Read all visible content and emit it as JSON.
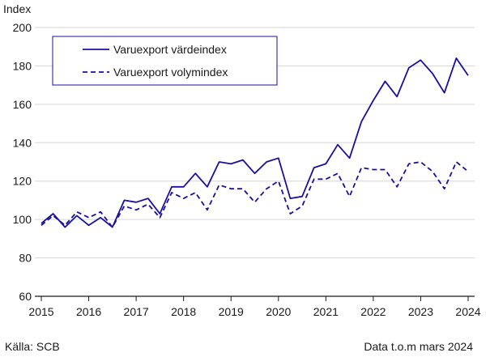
{
  "chart_data": {
    "type": "line",
    "ylabel": "Index",
    "ylim": [
      60,
      200
    ],
    "yticks": [
      60,
      80,
      100,
      120,
      140,
      160,
      180,
      200
    ],
    "xticks": [
      "2015",
      "2016",
      "2017",
      "2018",
      "2019",
      "2020",
      "2021",
      "2022",
      "2023",
      "2024"
    ],
    "xlim": [
      "2015 Q1",
      "2024 Q1"
    ],
    "grid": true,
    "legend_position": "top-left",
    "x": [
      "2015 Q1",
      "2015 Q2",
      "2015 Q3",
      "2015 Q4",
      "2016 Q1",
      "2016 Q2",
      "2016 Q3",
      "2016 Q4",
      "2017 Q1",
      "2017 Q2",
      "2017 Q3",
      "2017 Q4",
      "2018 Q1",
      "2018 Q2",
      "2018 Q3",
      "2018 Q4",
      "2019 Q1",
      "2019 Q2",
      "2019 Q3",
      "2019 Q4",
      "2020 Q1",
      "2020 Q2",
      "2020 Q3",
      "2020 Q4",
      "2021 Q1",
      "2021 Q2",
      "2021 Q3",
      "2021 Q4",
      "2022 Q1",
      "2022 Q2",
      "2022 Q3",
      "2022 Q4",
      "2023 Q1",
      "2023 Q2",
      "2023 Q3",
      "2023 Q4",
      "2024 Q1"
    ],
    "series": [
      {
        "name": "Varuexport värdeindex",
        "style": "solid",
        "color": "#1a0fa0",
        "values": [
          98,
          103,
          96,
          102,
          97,
          101,
          96,
          110,
          109,
          111,
          103,
          117,
          117,
          124,
          117,
          130,
          129,
          131,
          124,
          130,
          132,
          111,
          112,
          127,
          129,
          139,
          132,
          151,
          162,
          172,
          164,
          179,
          183,
          176,
          166,
          184,
          175
        ]
      },
      {
        "name": "Varuexport volymindex",
        "style": "dashed",
        "color": "#1a0fa0",
        "values": [
          97,
          102,
          97,
          104,
          101,
          104,
          96,
          107,
          105,
          108,
          101,
          114,
          111,
          114,
          105,
          118,
          116,
          116,
          109,
          116,
          120,
          103,
          107,
          121,
          121,
          124,
          112,
          127,
          126,
          126,
          117,
          129,
          130,
          125,
          116,
          130,
          125
        ]
      }
    ]
  },
  "footer": {
    "source": "Källa: SCB",
    "note": "Data t.o.m mars 2024"
  },
  "colors": {
    "line": "#1a0fa0",
    "grid": "#d6d6d6",
    "axis": "#1a1a1a"
  }
}
